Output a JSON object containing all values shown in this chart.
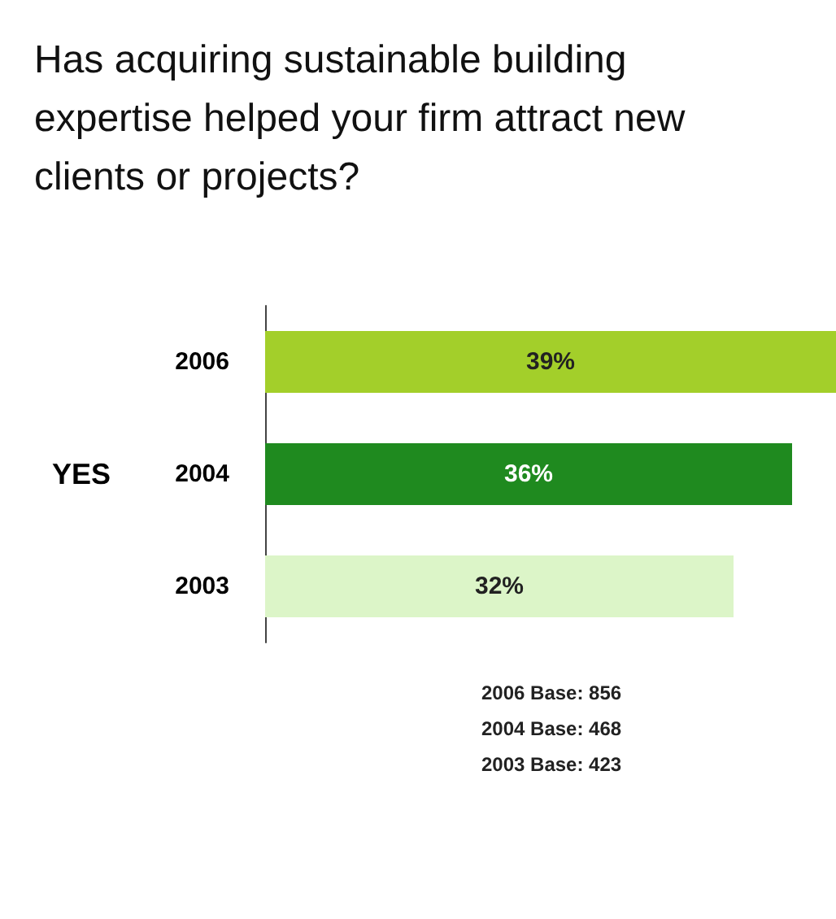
{
  "chart_data": {
    "type": "bar",
    "orientation": "horizontal",
    "title": "Has acquiring sustainable building expertise helped your firm attract new clients or projects?",
    "ylabel": "YES",
    "categories": [
      "2006",
      "2004",
      "2003"
    ],
    "values": [
      39,
      36,
      32
    ],
    "colors": [
      "#a3cf2a",
      "#1f8a1f",
      "#dcf5c8"
    ],
    "value_labels": [
      "39%",
      "36%",
      "32%"
    ],
    "annotations": [
      "2006 Base: 856",
      "2004 Base: 468",
      "2003 Base: 423"
    ]
  }
}
